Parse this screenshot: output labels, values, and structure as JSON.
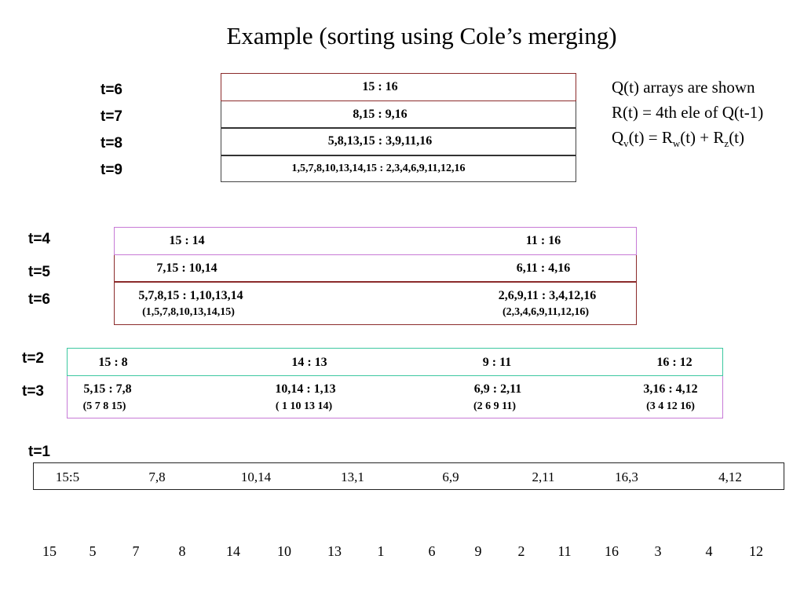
{
  "title": "Example (sorting using Cole’s merging)",
  "notes": {
    "line1": "Q(t) arrays are shown",
    "line2": "R(t) = 4th ele of Q(t-1)",
    "line3_q": "Q",
    "line3_q_sub": "v",
    "line3_eq": "(t) = R",
    "line3_w_sub": "w",
    "line3_plus": "(t) + R",
    "line3_z_sub": "z",
    "line3_end": "(t)"
  },
  "group1": {
    "labels": [
      "t=6",
      "t=7",
      "t=8",
      "t=9"
    ],
    "rows": [
      "15 : 16",
      "8,15 : 9,16",
      "5,8,13,15 : 3,9,11,16",
      "1,5,7,8,10,13,14,15 : 2,3,4,6,9,11,12,16"
    ]
  },
  "group2": {
    "labels": [
      "t=4",
      "t=5",
      "t=6"
    ],
    "t4": [
      "15 : 14",
      "11 : 16"
    ],
    "t5": [
      "7,15 : 10,14",
      "6,11 : 4,16"
    ],
    "t6": [
      "5,7,8,15 : 1,10,13,14",
      "2,6,9,11 : 3,4,12,16"
    ],
    "t6_sub": [
      "(1,5,7,8,10,13,14,15)",
      "(2,3,4,6,9,11,12,16)"
    ]
  },
  "group3": {
    "labels": [
      "t=2",
      "t=3"
    ],
    "t2": [
      "15 : 8",
      "14 : 13",
      "9 : 11",
      "16 : 12"
    ],
    "t3": [
      "5,15 :  7,8",
      "10,14 : 1,13",
      "6,9 : 2,11",
      "3,16 : 4,12"
    ],
    "t3_sub": [
      "(5 7 8 15)",
      "( 1 10 13 14)",
      "(2 6 9 11)",
      "(3 4 12 16)"
    ]
  },
  "group4": {
    "label": "t=1",
    "pairs": [
      "15:5",
      "7,8",
      "10,14",
      "13,1",
      "6,9",
      "2,11",
      "16,3",
      "4,12"
    ]
  },
  "input": [
    "15",
    "5",
    "7",
    "8",
    "14",
    "10",
    "13",
    "1",
    "6",
    "9",
    "2",
    "11",
    "16",
    "3",
    "4",
    "12"
  ]
}
